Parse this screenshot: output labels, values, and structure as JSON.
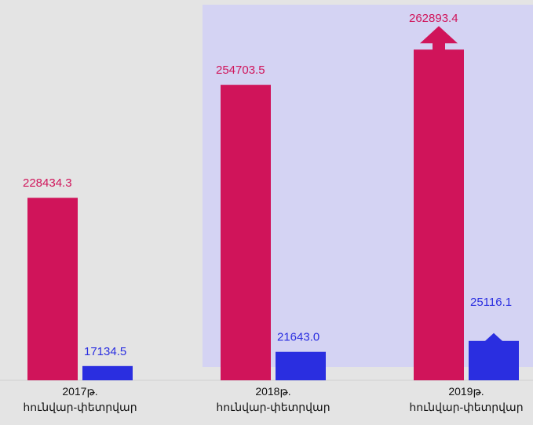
{
  "chart_data": {
    "type": "bar",
    "categories": [
      "2017թ.\nհունվար-փետրվար",
      "2018թ.\nհունվար-փետրվար",
      "2019թ.\nհունվար-փետրվար"
    ],
    "series": [
      {
        "color": "#d0145a",
        "values": [
          228434.3,
          254703.5,
          262893.4
        ],
        "value_labels": [
          "228434.3",
          "254703.5",
          "262893.4"
        ]
      },
      {
        "color": "#2a2ee0",
        "axis": "y2",
        "values": [
          17134.5,
          21643.0,
          25116.1
        ],
        "value_labels": [
          "17134.5",
          "21643.0",
          "25116.1"
        ]
      }
    ],
    "ylim": [
      186000,
      272600
    ],
    "y2lim": [
      12600,
      131000
    ]
  }
}
